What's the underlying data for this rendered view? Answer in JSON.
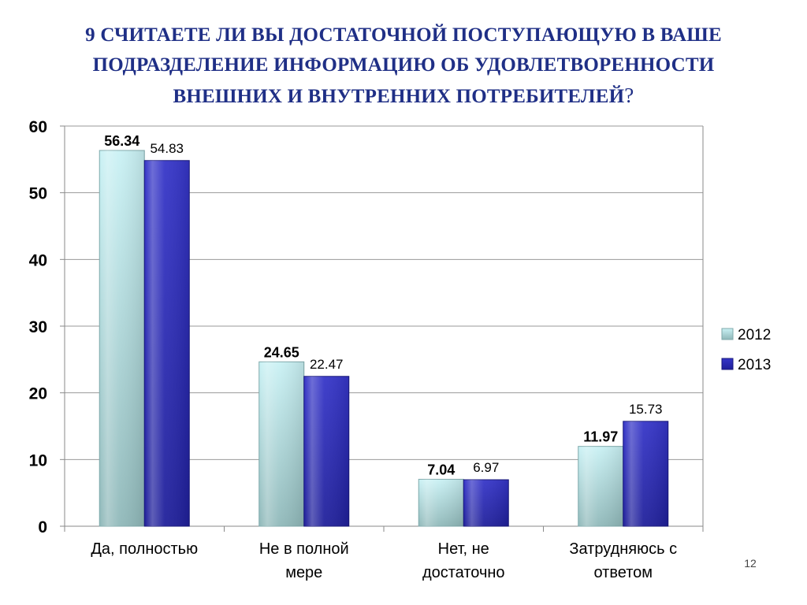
{
  "slide": {
    "title_lines": [
      "9 СЧИТАЕТЕ ЛИ ВЫ ДОСТАТОЧНОЙ ПОСТУПАЮЩУЮ В ВАШЕ",
      "ПОДРАЗДЕЛЕНИЕ ИНФОРМАЦИЮ ОБ УДОВЛЕТВОРЕННОСТИ",
      "ВНЕШНИХ И ВНУТРЕННИХ ПОТРЕБИТЕЛЕЙ"
    ],
    "title_end_mark": "?",
    "page_number": "12"
  },
  "chart_data": {
    "type": "bar",
    "categories": [
      [
        "Да, полностью"
      ],
      [
        "Не в полной",
        "мере"
      ],
      [
        "Нет, не",
        "достаточно"
      ],
      [
        "Затрудняюсь с",
        "ответом"
      ]
    ],
    "series": [
      {
        "name": "2012",
        "values": [
          56.34,
          24.65,
          7.04,
          11.97
        ],
        "labels": [
          "56.34",
          "24.65",
          "7.04",
          "11.97"
        ],
        "color": "#b3e4e8"
      },
      {
        "name": "2013",
        "values": [
          54.83,
          22.47,
          6.97,
          15.73
        ],
        "labels": [
          "54.83",
          "22.47",
          "6.97",
          "15.73"
        ],
        "color": "#2a2ab8"
      }
    ],
    "ylim": [
      0,
      60
    ],
    "yticks": [
      "0",
      "10",
      "20",
      "30",
      "40",
      "50",
      "60"
    ],
    "grid": true,
    "legend": "right"
  }
}
